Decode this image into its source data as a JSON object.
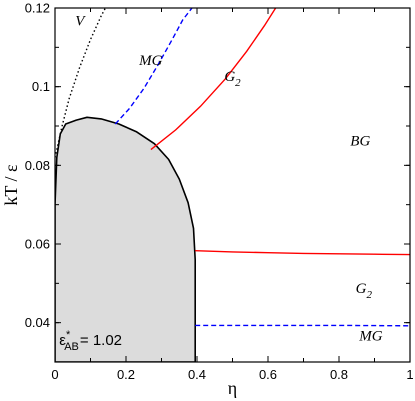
{
  "chart_data": {
    "type": "line",
    "xlabel": "η",
    "ylabel": "kT / ε",
    "xlim": [
      0,
      1
    ],
    "ylim": [
      0.03,
      0.12
    ],
    "x_ticks": [
      0,
      0.2,
      0.4,
      0.6,
      0.8,
      1
    ],
    "x_tick_labels": [
      "0",
      "0.2",
      "0.4",
      "0.6",
      "0.8",
      "1"
    ],
    "y_ticks": [
      0.04,
      0.06,
      0.08,
      0.1,
      0.12
    ],
    "y_tick_labels": [
      "0.04",
      "0.06",
      "0.08",
      "0.1",
      "0.12"
    ],
    "grid": false,
    "series": [
      {
        "key": "coexistence",
        "style": "solid-black-filled",
        "color": "#000000",
        "fill": "#dcdcdc",
        "points": [
          [
            0.0,
            0.03
          ],
          [
            0.0,
            0.07
          ],
          [
            0.005,
            0.082
          ],
          [
            0.015,
            0.088
          ],
          [
            0.03,
            0.0905
          ],
          [
            0.06,
            0.0915
          ],
          [
            0.09,
            0.0922
          ],
          [
            0.13,
            0.0918
          ],
          [
            0.18,
            0.0905
          ],
          [
            0.23,
            0.0885
          ],
          [
            0.28,
            0.0855
          ],
          [
            0.32,
            0.0815
          ],
          [
            0.35,
            0.0765
          ],
          [
            0.375,
            0.0705
          ],
          [
            0.39,
            0.064
          ],
          [
            0.395,
            0.056
          ],
          [
            0.395,
            0.045
          ],
          [
            0.395,
            0.03
          ]
        ]
      },
      {
        "key": "vapor-boundary",
        "style": "dotted",
        "color": "#000000",
        "points": [
          [
            0.0,
            0.082
          ],
          [
            0.02,
            0.09
          ],
          [
            0.04,
            0.097
          ],
          [
            0.07,
            0.105
          ],
          [
            0.1,
            0.112
          ],
          [
            0.13,
            0.118
          ],
          [
            0.145,
            0.1205
          ]
        ]
      },
      {
        "key": "g2-mg-upper",
        "style": "dashed",
        "color": "#0000ff",
        "points": [
          [
            0.17,
            0.0905
          ],
          [
            0.21,
            0.0945
          ],
          [
            0.25,
            0.0995
          ],
          [
            0.29,
            0.1055
          ],
          [
            0.33,
            0.112
          ],
          [
            0.36,
            0.117
          ],
          [
            0.39,
            0.1205
          ]
        ]
      },
      {
        "key": "bg-g2-upper",
        "style": "solid",
        "color": "#ff0000",
        "points": [
          [
            0.27,
            0.084
          ],
          [
            0.34,
            0.089
          ],
          [
            0.41,
            0.095
          ],
          [
            0.48,
            0.102
          ],
          [
            0.54,
            0.109
          ],
          [
            0.59,
            0.1155
          ],
          [
            0.625,
            0.1205
          ]
        ]
      },
      {
        "key": "bg-g2-lower",
        "style": "solid",
        "color": "#ff0000",
        "points": [
          [
            0.395,
            0.0583
          ],
          [
            0.5,
            0.058
          ],
          [
            0.6,
            0.0578
          ],
          [
            0.7,
            0.0576
          ],
          [
            0.8,
            0.0575
          ],
          [
            0.9,
            0.0574
          ],
          [
            1.0,
            0.0573
          ]
        ]
      },
      {
        "key": "g2-mg-lower",
        "style": "dashed",
        "color": "#0000ff",
        "points": [
          [
            0.395,
            0.0393
          ],
          [
            0.6,
            0.0393
          ],
          [
            0.8,
            0.0393
          ],
          [
            1.0,
            0.0392
          ]
        ]
      }
    ],
    "annotations": [
      {
        "key": "v",
        "text": "V",
        "x": 0.07,
        "y": 0.1155
      },
      {
        "key": "mg-top",
        "text": "MG",
        "x": 0.27,
        "y": 0.1055
      },
      {
        "key": "g2-top",
        "text": "G",
        "sub": "2",
        "x": 0.5,
        "y": 0.1015
      },
      {
        "key": "bg",
        "text": "BG",
        "x": 0.86,
        "y": 0.085
      },
      {
        "key": "g2-bottom",
        "text": "G",
        "sub": "2",
        "x": 0.87,
        "y": 0.0475
      },
      {
        "key": "mg-bottom",
        "text": "MG",
        "x": 0.89,
        "y": 0.0355
      }
    ],
    "note": {
      "base": "ε",
      "sup": "*",
      "sub": "AB",
      "value": "= 1.02",
      "x": 0.012,
      "y": 0.0343
    }
  }
}
